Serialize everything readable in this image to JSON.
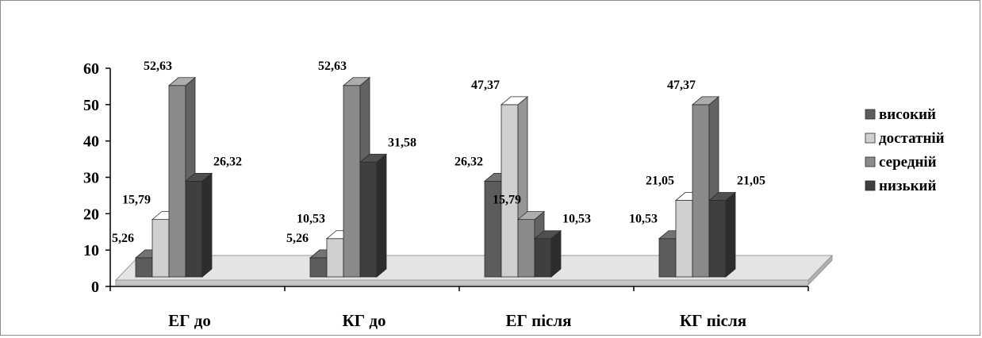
{
  "chart_data": {
    "type": "bar",
    "categories": [
      "ЕГ до",
      "КГ до",
      "ЕГ після",
      "КГ після"
    ],
    "series": [
      {
        "name": "високий",
        "color": "#5c5c5c",
        "values": [
          5.26,
          5.26,
          26.32,
          10.53
        ]
      },
      {
        "name": "достатній",
        "color": "#d0d0d0",
        "values": [
          15.79,
          10.53,
          47.37,
          21.05
        ]
      },
      {
        "name": "середній",
        "color": "#8a8a8a",
        "values": [
          52.63,
          52.63,
          15.79,
          47.37
        ]
      },
      {
        "name": "низький",
        "color": "#3f3f3f",
        "values": [
          26.32,
          31.58,
          10.53,
          21.05
        ]
      }
    ],
    "data_labels": [
      [
        "5,26",
        "5,26",
        "26,32",
        "10,53"
      ],
      [
        "15,79",
        "10,53",
        "47,37",
        "21,05"
      ],
      [
        "52,63",
        "52,63",
        "15,79",
        "47,37"
      ],
      [
        "26,32",
        "31,58",
        "10,53",
        "21,05"
      ]
    ],
    "yticks": [
      "0",
      "10",
      "20",
      "30",
      "40",
      "50",
      "60"
    ],
    "ylim": [
      0,
      60
    ],
    "legend_position": "right",
    "grid": false
  }
}
